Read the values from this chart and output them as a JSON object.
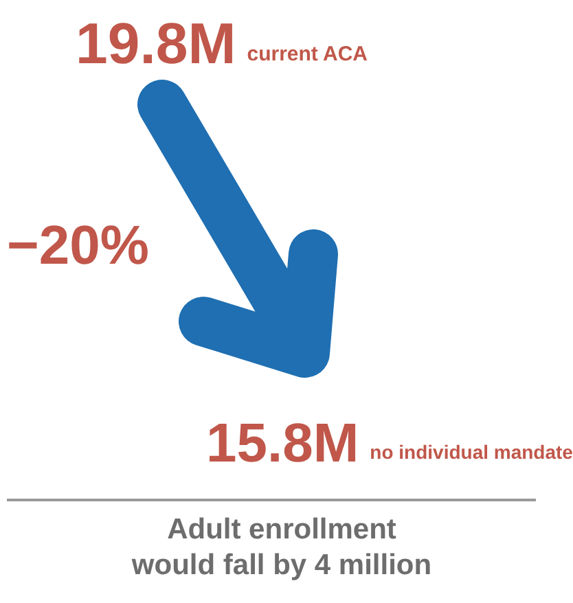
{
  "chart_data": {
    "type": "other",
    "title": "Adult enrollment would fall by 4 million",
    "categories": [
      "current ACA",
      "no individual mandate"
    ],
    "values": [
      19.8,
      15.8
    ],
    "value_labels": [
      "19.8M",
      "15.8M"
    ],
    "color": "#c0574a",
    "annotations": [
      "−20%"
    ]
  }
}
